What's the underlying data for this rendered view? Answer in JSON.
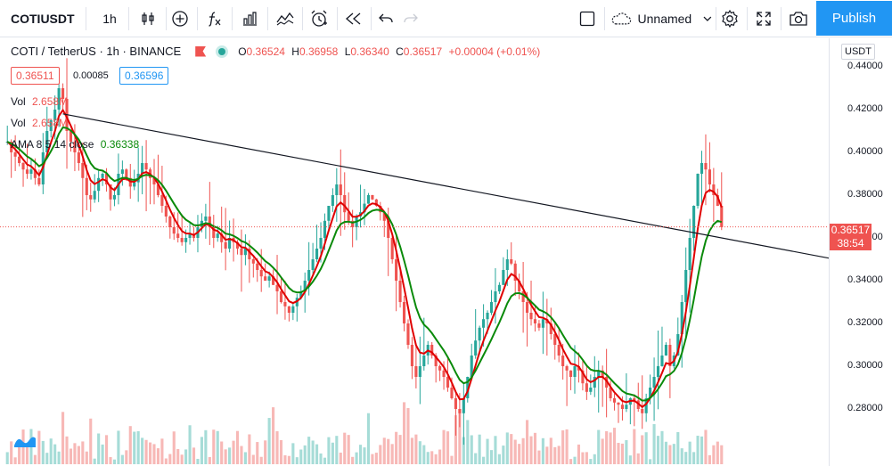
{
  "toolbar": {
    "symbol": "COTIUSDT",
    "interval": "1h",
    "layout_name": "Unnamed",
    "publish_label": "Publish"
  },
  "legend": {
    "title": "COTI / TetherUS · 1h · BINANCE",
    "open_key": "O",
    "open": "0.36524",
    "high_key": "H",
    "high": "0.36958",
    "low_key": "L",
    "low": "0.36340",
    "close_key": "C",
    "close": "0.36517",
    "change": "+0.00004 (+0.01%)",
    "bid": "0.36511",
    "spread": "0.00085",
    "ask": "0.36596",
    "vol1_label": "Vol",
    "vol1_value": "2.658M",
    "vol2_label": "Vol",
    "vol2_value": "2.658M",
    "ama_label": "AMA 8 5 14 close",
    "ama_value": "0.36338"
  },
  "price_axis": {
    "currency": "USDT",
    "ticks": [
      "0.44000",
      "0.42000",
      "0.40000",
      "0.38000",
      "0.36000",
      "0.34000",
      "0.32000",
      "0.30000",
      "0.28000"
    ],
    "last_price": "0.36517",
    "countdown": "38:54"
  },
  "colors": {
    "up": "#26a69a",
    "down": "#ef5350",
    "accent": "#2196f3",
    "ama_fast": "#e00000",
    "ama_slow": "#0a8a0a"
  },
  "chart_data": {
    "type": "line",
    "ylim": [
      0.27,
      0.445
    ],
    "close": [
      0.405,
      0.4,
      0.398,
      0.395,
      0.392,
      0.39,
      0.392,
      0.388,
      0.385,
      0.4,
      0.41,
      0.415,
      0.42,
      0.43,
      0.425,
      0.41,
      0.405,
      0.4,
      0.395,
      0.388,
      0.38,
      0.378,
      0.382,
      0.388,
      0.39,
      0.385,
      0.378,
      0.38,
      0.39,
      0.392,
      0.388,
      0.384,
      0.386,
      0.39,
      0.395,
      0.392,
      0.388,
      0.385,
      0.38,
      0.375,
      0.37,
      0.365,
      0.362,
      0.36,
      0.358,
      0.36,
      0.362,
      0.36,
      0.365,
      0.368,
      0.37,
      0.365,
      0.36,
      0.362,
      0.358,
      0.355,
      0.36,
      0.358,
      0.355,
      0.352,
      0.355,
      0.35,
      0.348,
      0.345,
      0.342,
      0.34,
      0.342,
      0.338,
      0.335,
      0.33,
      0.328,
      0.325,
      0.328,
      0.332,
      0.335,
      0.34,
      0.345,
      0.35,
      0.355,
      0.36,
      0.368,
      0.375,
      0.38,
      0.385,
      0.38,
      0.372,
      0.368,
      0.365,
      0.37,
      0.372,
      0.376,
      0.38,
      0.378,
      0.375,
      0.372,
      0.368,
      0.36,
      0.35,
      0.34,
      0.33,
      0.32,
      0.31,
      0.3,
      0.295,
      0.3,
      0.305,
      0.31,
      0.305,
      0.3,
      0.298,
      0.295,
      0.29,
      0.285,
      0.28,
      0.278,
      0.285,
      0.295,
      0.305,
      0.312,
      0.318,
      0.322,
      0.325,
      0.33,
      0.335,
      0.338,
      0.345,
      0.35,
      0.348,
      0.34,
      0.335,
      0.33,
      0.325,
      0.322,
      0.32,
      0.318,
      0.322,
      0.32,
      0.315,
      0.31,
      0.305,
      0.3,
      0.298,
      0.295,
      0.3,
      0.298,
      0.292,
      0.288,
      0.29,
      0.295,
      0.298,
      0.295,
      0.29,
      0.285,
      0.283,
      0.282,
      0.28,
      0.282,
      0.285,
      0.284,
      0.28,
      0.278,
      0.285,
      0.29,
      0.295,
      0.3,
      0.305,
      0.31,
      0.3,
      0.305,
      0.315,
      0.33,
      0.345,
      0.36,
      0.375,
      0.39,
      0.395,
      0.392,
      0.385,
      0.38,
      0.375,
      0.365
    ]
  },
  "trendline": {
    "start": {
      "index": 14,
      "price": 0.418
    },
    "end": {
      "index": 190,
      "price": 0.3565
    }
  }
}
